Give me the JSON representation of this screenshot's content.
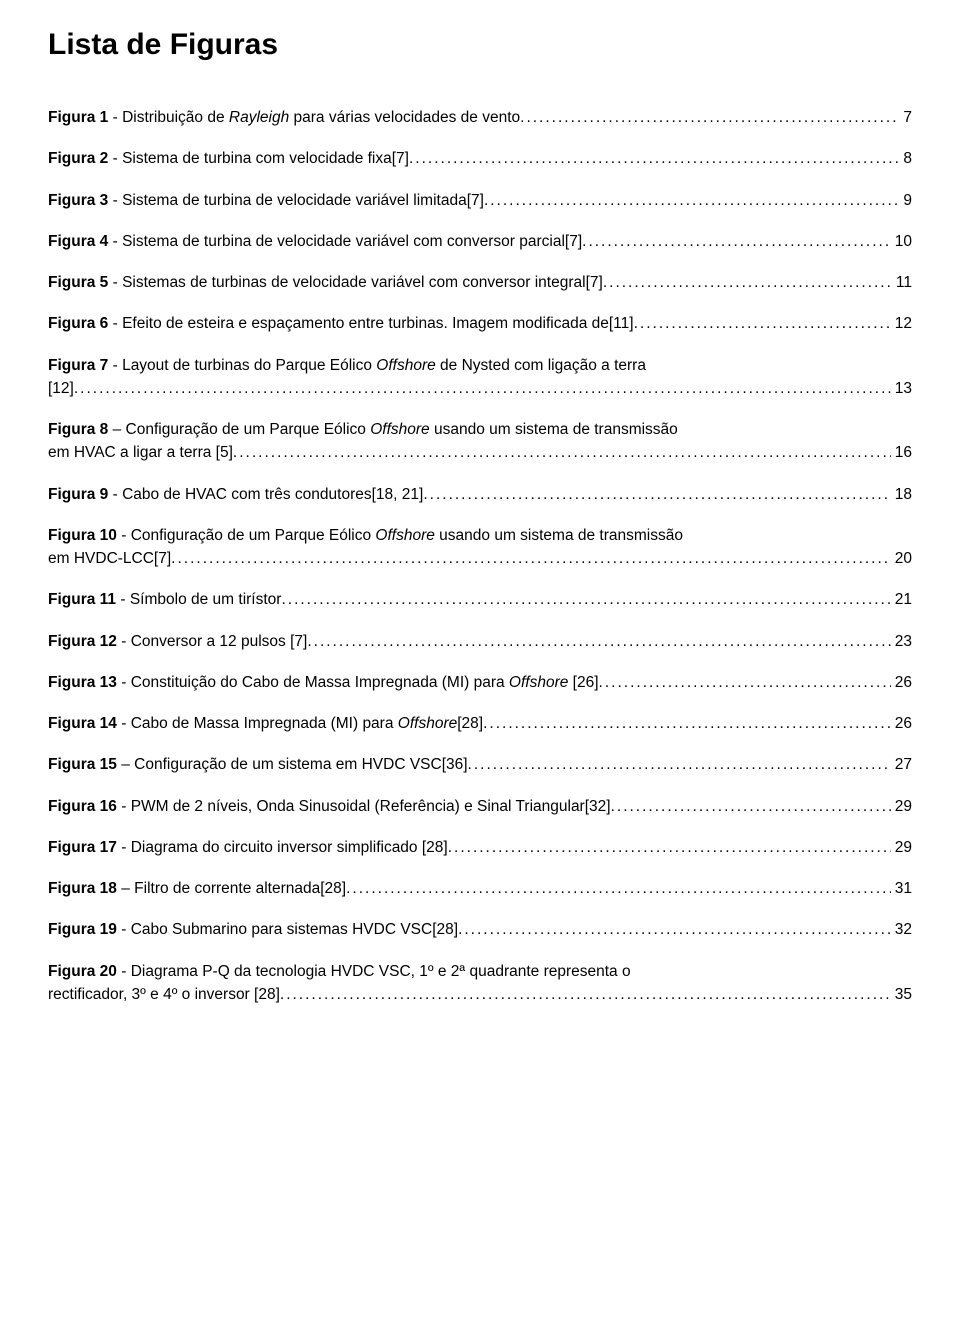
{
  "title": "Lista de Figuras",
  "entries": [
    {
      "label": "Figura 1",
      "sep": " - ",
      "desc_html": "Distribuição de <i>Rayleigh</i> para várias velocidades de vento",
      "page": "7",
      "indent": false
    },
    {
      "label": "Figura 2",
      "sep": " - ",
      "desc_html": "Sistema de turbina com velocidade fixa[7]",
      "page": "8",
      "indent": false
    },
    {
      "label": "Figura 3",
      "sep": " - ",
      "desc_html": "Sistema de turbina de velocidade variável limitada[7]",
      "page": "9",
      "indent": false
    },
    {
      "label": "Figura 4",
      "sep": " - ",
      "desc_html": "Sistema de turbina de velocidade variável com conversor parcial[7]",
      "page": "10",
      "indent": false
    },
    {
      "label": "Figura 5",
      "sep": " - ",
      "desc_html": "Sistemas de turbinas de velocidade variável com conversor integral[7]",
      "page": "11",
      "indent": false
    },
    {
      "label": "Figura 6",
      "sep": " - ",
      "desc_html": "Efeito de esteira e espaçamento entre turbinas. Imagem modificada de[11]",
      "page": "12",
      "indent": false
    },
    {
      "label": "Figura 7",
      "sep": " - ",
      "first_line_html": "Layout de turbinas do Parque Eólico <i>Offshore</i> de Nysted com ligação a terra",
      "cont_html": "[12]",
      "page": "13",
      "indent": true
    },
    {
      "label": "Figura 8",
      "sep": " – ",
      "first_line_html": "Configuração de um Parque Eólico <i>Offshore</i> usando um sistema de transmissão",
      "cont_html": "em HVAC a ligar a terra [5]",
      "page": "16",
      "indent": true
    },
    {
      "label": "Figura 9",
      "sep": " - ",
      "desc_html": "Cabo de HVAC com três condutores[18, 21]",
      "page": "18",
      "indent": false
    },
    {
      "label": "Figura 10",
      "sep": " - ",
      "first_line_html": "Configuração de um Parque Eólico <i>Offshore</i> usando um sistema de transmissão",
      "cont_html": "em HVDC-LCC[7]",
      "page": "20",
      "indent": true
    },
    {
      "label": "Figura 11",
      "sep": " - ",
      "desc_html": "Símbolo de um tirístor",
      "page": "21",
      "indent": false
    },
    {
      "label": "Figura 12",
      "sep": " - ",
      "desc_html": "Conversor a 12 pulsos [7]",
      "page": "23",
      "indent": false
    },
    {
      "label": "Figura 13",
      "sep": " - ",
      "desc_html": "Constituição do Cabo de Massa Impregnada (MI) para <i>Offshore</i> [26]",
      "page": "26",
      "indent": false
    },
    {
      "label": "Figura 14",
      "sep": " - ",
      "desc_html": "Cabo de Massa Impregnada (MI) para <i>Offshore</i>[28]",
      "page": "26",
      "indent": false
    },
    {
      "label": "Figura 15",
      "sep": " – ",
      "desc_html": "Configuração de um sistema em HVDC VSC[36]",
      "page": "27",
      "indent": false
    },
    {
      "label": "Figura 16",
      "sep": " - ",
      "desc_html": "PWM de 2 níveis, Onda Sinusoidal (Referência) e Sinal Triangular[32]",
      "page": "29",
      "indent": false
    },
    {
      "label": "Figura 17",
      "sep": " - ",
      "desc_html": "Diagrama do circuito inversor simplificado [28]",
      "page": "29",
      "indent": false
    },
    {
      "label": "Figura 18",
      "sep": " – ",
      "desc_html": "Filtro de corrente alternada[28]",
      "page": "31",
      "indent": false
    },
    {
      "label": "Figura 19",
      "sep": " - ",
      "desc_html": "Cabo Submarino para sistemas HVDC VSC[28]",
      "page": "32",
      "indent": false
    },
    {
      "label": "Figura 20",
      "sep": " - ",
      "first_line_html": "Diagrama P-Q da tecnologia HVDC VSC, 1º e 2ª quadrante representa o",
      "cont_html": "rectificador, 3º e 4º o inversor [28]",
      "page": "35",
      "indent": true,
      "justify_first": true
    }
  ]
}
